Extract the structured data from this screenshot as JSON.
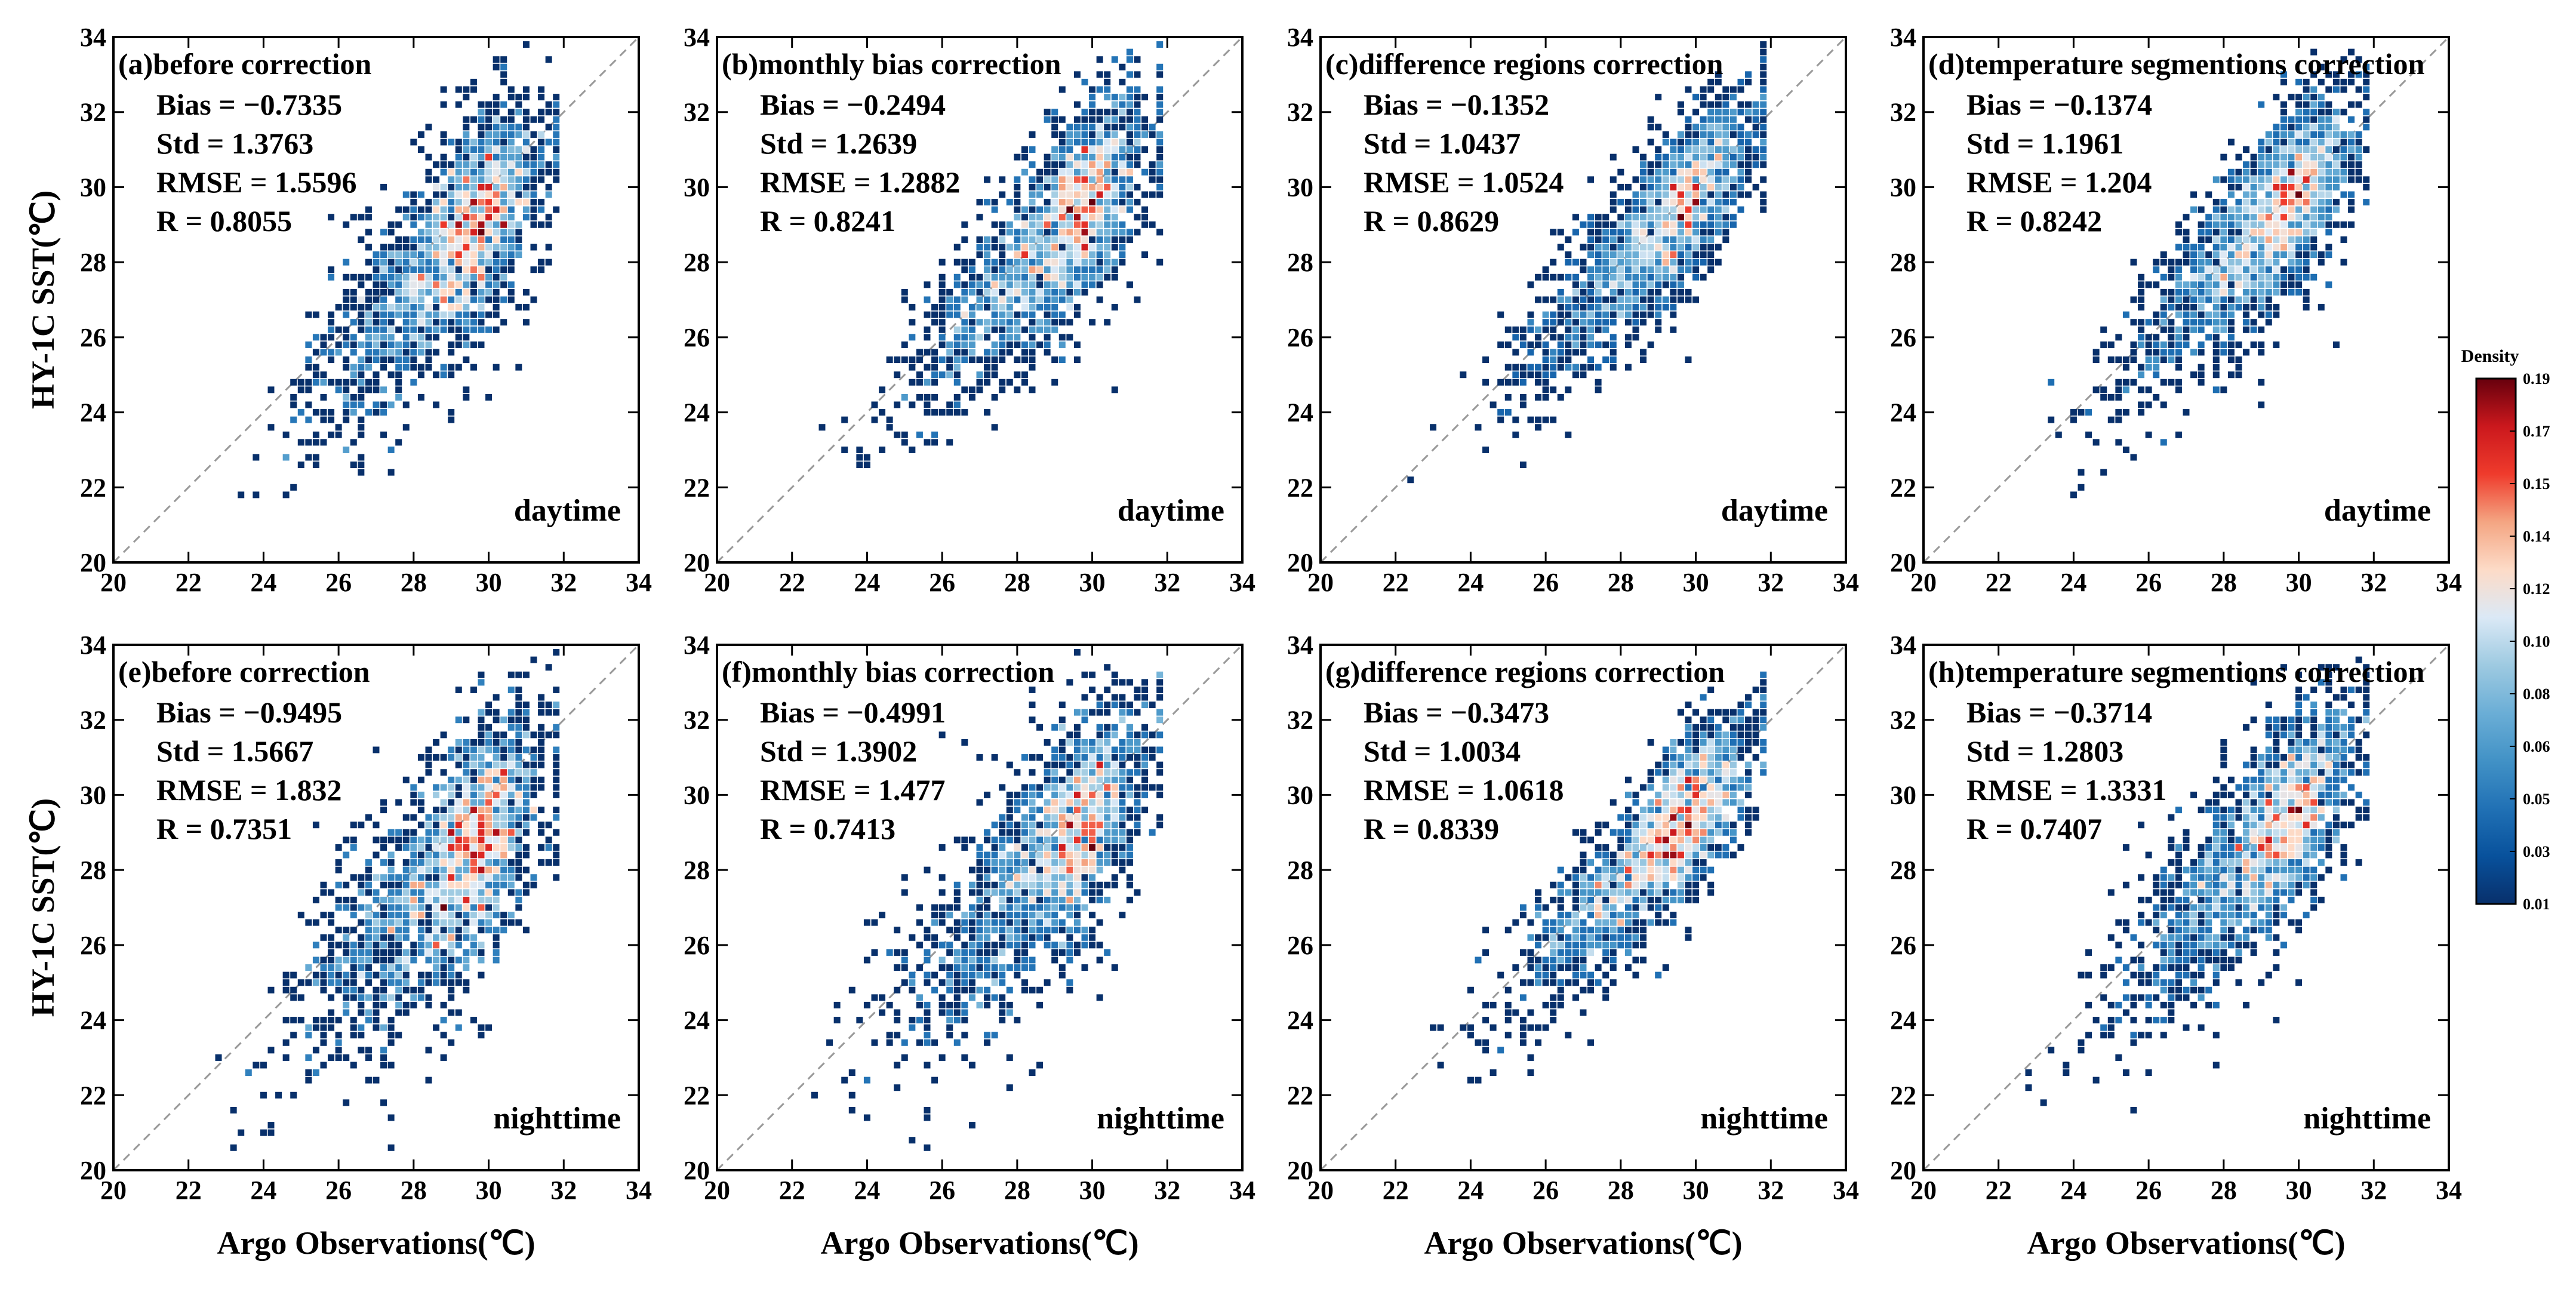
{
  "chart_data": [
    {
      "type": "scatter",
      "panel_title": "(a)before correction",
      "period": "daytime",
      "stats": [
        "Bias = −0.7335",
        "Std = 1.3763",
        "RMSE = 1.5596",
        "R = 0.8055"
      ],
      "xlabel": "",
      "ylabel": "HY-1C SST(℃)",
      "xlim": [
        20,
        34
      ],
      "ylim": [
        20,
        34
      ],
      "bias": -0.7335,
      "std": 1.3763,
      "center": [
        28.4,
        27.7
      ]
    },
    {
      "type": "scatter",
      "panel_title": "(b)monthly bias correction",
      "period": "daytime",
      "stats": [
        "Bias = −0.2494",
        "Std = 1.2639",
        "RMSE = 1.2882",
        "R = 0.8241"
      ],
      "xlabel": "",
      "ylabel": "",
      "xlim": [
        20,
        34
      ],
      "ylim": [
        20,
        34
      ],
      "bias": -0.2494,
      "std": 1.2639,
      "center": [
        28.4,
        28.2
      ]
    },
    {
      "type": "scatter",
      "panel_title": "(c)difference regions correction",
      "period": "daytime",
      "stats": [
        "Bias = −0.1352",
        "Std = 1.0437",
        "RMSE = 1.0524",
        "R = 0.8629"
      ],
      "xlabel": "",
      "ylabel": "",
      "xlim": [
        20,
        34
      ],
      "ylim": [
        20,
        34
      ],
      "bias": -0.1352,
      "std": 1.0437,
      "center": [
        28.4,
        28.3
      ]
    },
    {
      "type": "scatter",
      "panel_title": "(d)temperature segmentions correction",
      "period": "daytime",
      "stats": [
        "Bias = −0.1374",
        "Std = 1.1961",
        "RMSE = 1.204",
        "R = 0.8242"
      ],
      "xlabel": "",
      "ylabel": "",
      "xlim": [
        20,
        34
      ],
      "ylim": [
        20,
        34
      ],
      "bias": -0.1374,
      "std": 1.1961,
      "center": [
        28.4,
        28.3
      ]
    },
    {
      "type": "scatter",
      "panel_title": "(e)before correction",
      "period": "nighttime",
      "stats": [
        "Bias = −0.9495",
        "Std = 1.5667",
        "RMSE = 1.832",
        "R = 0.7351"
      ],
      "xlabel": "Argo Observations(℃)",
      "ylabel": "HY-1C SST(℃)",
      "xlim": [
        20,
        34
      ],
      "ylim": [
        20,
        34
      ],
      "bias": -0.9495,
      "std": 1.5667,
      "center": [
        28.3,
        27.4
      ]
    },
    {
      "type": "scatter",
      "panel_title": "(f)monthly bias correction",
      "period": "nighttime",
      "stats": [
        "Bias = −0.4991",
        "Std = 1.3902",
        "RMSE = 1.477",
        "R = 0.7413"
      ],
      "xlabel": "Argo Observations(℃)",
      "ylabel": "",
      "xlim": [
        20,
        34
      ],
      "ylim": [
        20,
        34
      ],
      "bias": -0.4991,
      "std": 1.3902,
      "center": [
        28.3,
        27.8
      ]
    },
    {
      "type": "scatter",
      "panel_title": "(g)difference regions correction",
      "period": "nighttime",
      "stats": [
        "Bias = −0.3473",
        "Std = 1.0034",
        "RMSE = 1.0618",
        "R = 0.8339"
      ],
      "xlabel": "Argo Observations(℃)",
      "ylabel": "",
      "xlim": [
        20,
        34
      ],
      "ylim": [
        20,
        34
      ],
      "bias": -0.3473,
      "std": 1.0034,
      "center": [
        28.3,
        28.0
      ]
    },
    {
      "type": "scatter",
      "panel_title": "(h)temperature segmentions correction",
      "period": "nighttime",
      "stats": [
        "Bias = −0.3714",
        "Std = 1.2803",
        "RMSE = 1.3331",
        "R = 0.7407"
      ],
      "xlabel": "Argo Observations(℃)",
      "ylabel": "",
      "xlim": [
        20,
        34
      ],
      "ylim": [
        20,
        34
      ],
      "bias": -0.3714,
      "std": 1.2803,
      "center": [
        28.3,
        27.9
      ]
    }
  ],
  "axis_ticks": [
    "20",
    "22",
    "24",
    "26",
    "28",
    "30",
    "32",
    "34"
  ],
  "colorbar": {
    "title": "Density",
    "ticks": [
      "0.19",
      "0.17",
      "0.15",
      "0.14",
      "0.12",
      "0.10",
      "0.08",
      "0.06",
      "0.05",
      "0.03",
      "0.01"
    ],
    "colors": [
      "#08306b",
      "#08519c",
      "#2171b5",
      "#4292c6",
      "#6baed6",
      "#9ecae1",
      "#dbe9f6",
      "#fddbc7",
      "#f4a582",
      "#ef3b2c",
      "#cb181d",
      "#67000d"
    ]
  }
}
